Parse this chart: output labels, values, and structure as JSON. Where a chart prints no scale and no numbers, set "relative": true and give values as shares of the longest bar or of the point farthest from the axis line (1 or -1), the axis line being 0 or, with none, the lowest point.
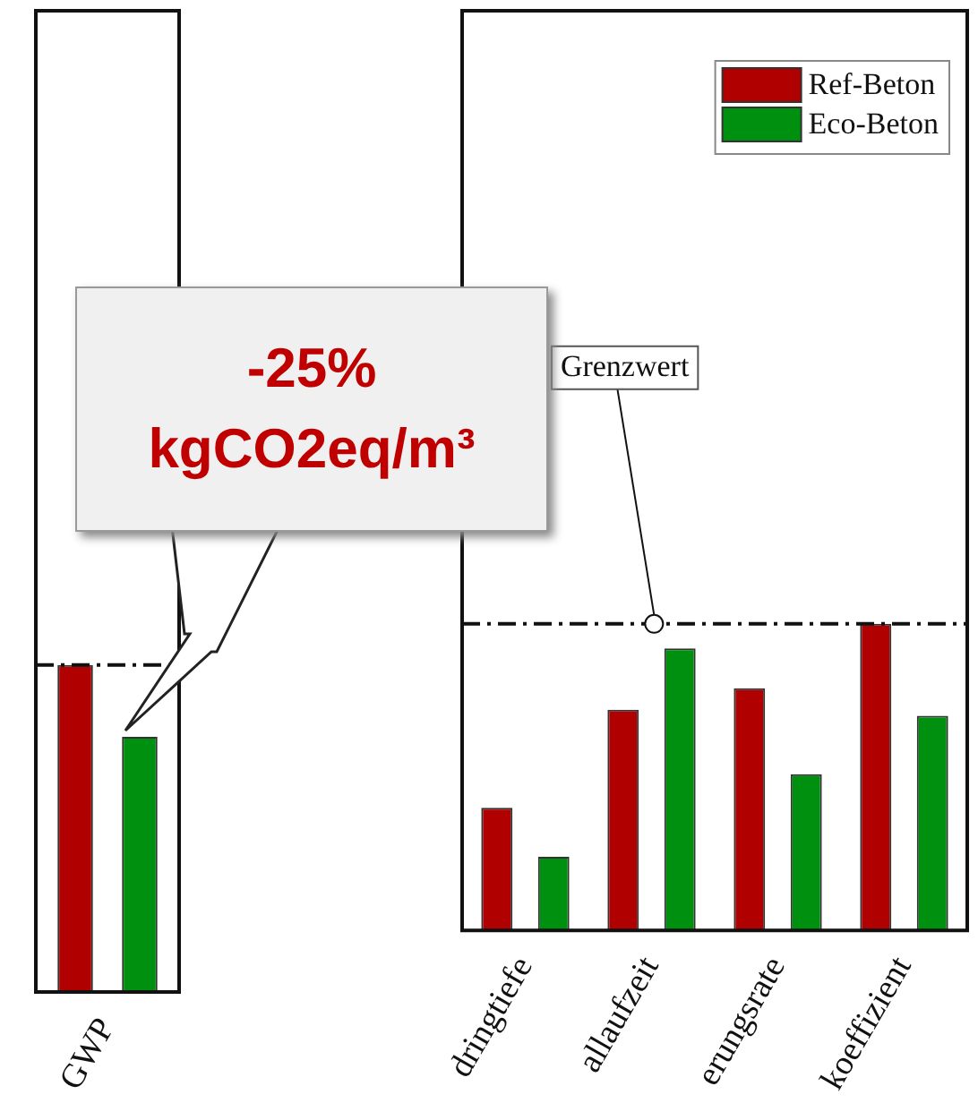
{
  "chart_data": [
    {
      "type": "bar",
      "relative": true,
      "tick_labels": "x",
      "categories": [
        "GWP"
      ],
      "series": [
        {
          "color": "#b00000",
          "values": [
            1
          ]
        },
        {
          "color": "#009010",
          "values": [
            0.78
          ]
        }
      ],
      "ref_lines": [
        {
          "axis": "y",
          "value": 1,
          "line_style": "dashed"
        }
      ],
      "annotations": [
        "-25% kgCO2eq/m³"
      ]
    },
    {
      "type": "bar",
      "relative": true,
      "tick_labels": "x",
      "legend": "top right",
      "categories": [
        "dringtiefe",
        "allaufzeit",
        "erungsrate",
        "koeffizient"
      ],
      "series": [
        {
          "name": "Ref-Beton",
          "color": "#b00000",
          "values": [
            0.4,
            0.72,
            0.79,
            1
          ]
        },
        {
          "name": "Eco-Beton",
          "color": "#009010",
          "values": [
            0.24,
            0.92,
            0.51,
            0.7
          ]
        }
      ],
      "ref_lines": [
        {
          "axis": "y",
          "value": 1,
          "label": "Grenzwert",
          "line_style": "dashed"
        }
      ]
    }
  ]
}
